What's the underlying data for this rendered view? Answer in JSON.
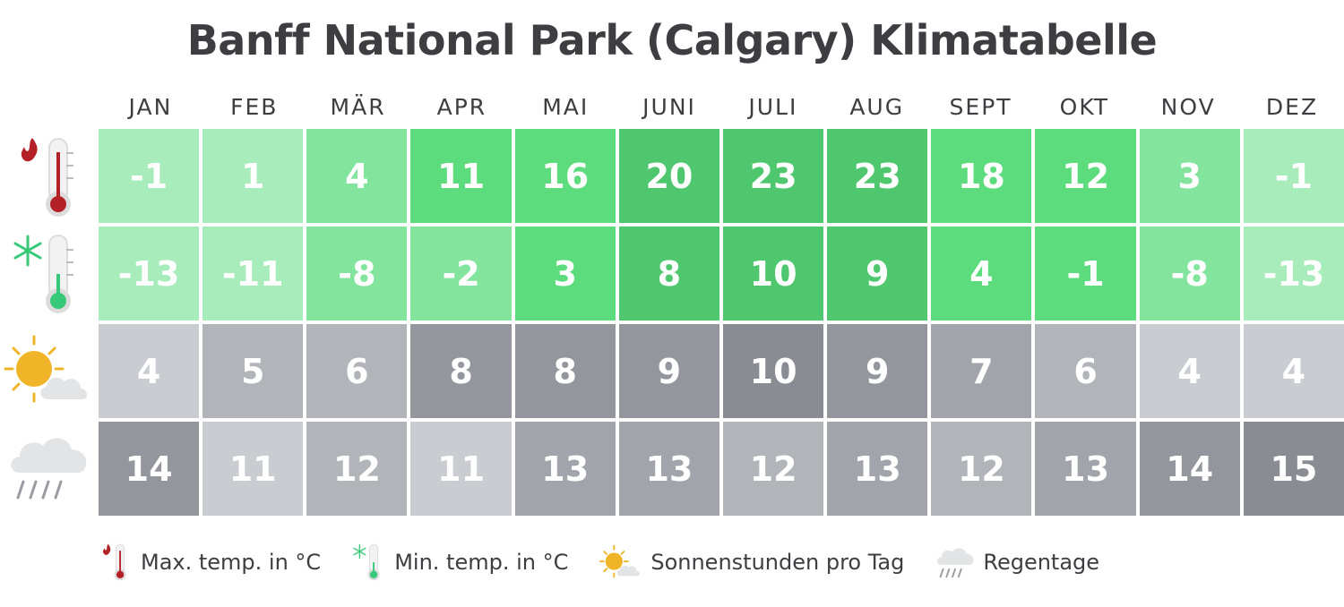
{
  "chart_data": {
    "type": "table",
    "title": "Banff National Park (Calgary) Klimatabelle",
    "categories": [
      "JAN",
      "FEB",
      "MÄR",
      "APR",
      "MAI",
      "JUNI",
      "JULI",
      "AUG",
      "SEPT",
      "OKT",
      "NOV",
      "DEZ"
    ],
    "series": [
      {
        "name": "Max. temp. in °C",
        "icon": "thermometer-hot-icon",
        "values": [
          -1,
          1,
          4,
          11,
          16,
          20,
          23,
          23,
          18,
          12,
          3,
          -1
        ]
      },
      {
        "name": "Min. temp. in °C",
        "icon": "thermometer-cold-icon",
        "values": [
          -13,
          -11,
          -8,
          -2,
          3,
          8,
          10,
          9,
          4,
          -1,
          -8,
          -13
        ]
      },
      {
        "name": "Sonnenstunden pro Tag",
        "icon": "sun-cloud-icon",
        "values": [
          4,
          5,
          6,
          8,
          8,
          9,
          10,
          9,
          7,
          6,
          4,
          4
        ]
      },
      {
        "name": "Regentage",
        "icon": "rain-cloud-icon",
        "values": [
          14,
          11,
          12,
          11,
          13,
          13,
          12,
          13,
          12,
          13,
          14,
          15
        ]
      }
    ]
  },
  "colors": {
    "temp_palette": [
      "#a7ecba",
      "#83e49e",
      "#5cdc7d",
      "#4fc76e"
    ],
    "gray_palette": [
      "#c9ccd0",
      "#b1b4b9",
      "#a1a4aa",
      "#94969d",
      "#8a8c93"
    ],
    "text": "#3d3d42"
  }
}
